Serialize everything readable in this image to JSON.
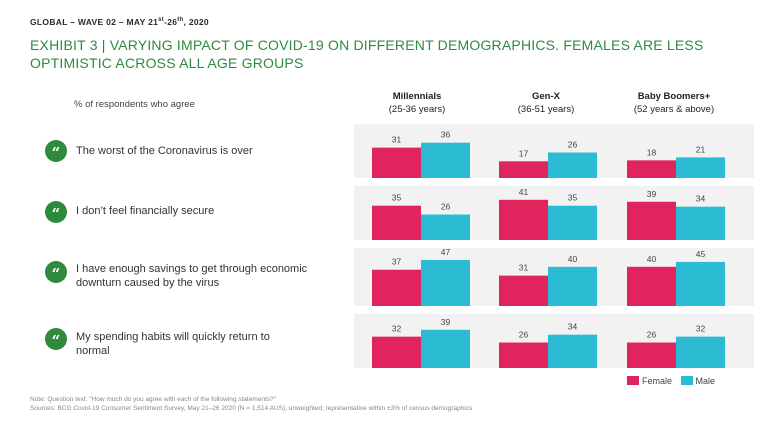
{
  "header": {
    "tag_prefix": "GLOBAL – WAVE 02 – MAY 21",
    "sup1": "st",
    "tag_mid": "-26",
    "sup2": "th",
    "tag_suffix": ", 2020"
  },
  "title": "EXHIBIT 3 | VARYING IMPACT OF COVID-19 ON DIFFERENT DEMOGRAPHICS. FEMALES ARE LESS OPTIMISTIC ACROSS ALL AGE GROUPS",
  "quote_glyph": "“",
  "legend": {
    "female": "Female",
    "male": "Male"
  },
  "note": "Note: Question text: \"How much do you agree with each of the following statements?\"",
  "source": "Sources: BCG Covid-19 Consumer Sentiment Survey, May 21–26 2020 (N = 1,514 AUS), unweighted; representative within ±3% of census demographics",
  "chart_data": {
    "type": "bar",
    "title": "Varying impact of COVID-19 on different demographics",
    "subtitle": "% of respondents who agree",
    "groups": [
      {
        "name": "Millennials",
        "range": "(25-36 years)"
      },
      {
        "name": "Gen-X",
        "range": "(36-51 years)"
      },
      {
        "name": "Baby Boomers+",
        "range": "(52 years & above)"
      }
    ],
    "categories": [
      "The worst of the Coronavirus is over",
      "I don’t feel financially secure",
      "I have enough savings to get through economic downturn caused by the virus",
      "My spending habits will quickly return to normal"
    ],
    "series": [
      {
        "name": "Female",
        "color": "#e0245e",
        "values": [
          [
            31,
            17,
            18
          ],
          [
            35,
            41,
            39
          ],
          [
            37,
            31,
            40
          ],
          [
            32,
            26,
            26
          ]
        ]
      },
      {
        "name": "Male",
        "color": "#2bbcd4",
        "values": [
          [
            36,
            26,
            21
          ],
          [
            26,
            35,
            34
          ],
          [
            47,
            40,
            45
          ],
          [
            39,
            34,
            32
          ]
        ]
      }
    ],
    "ylim": [
      0,
      50
    ],
    "grid": false,
    "legend_position": "bottom-right"
  }
}
